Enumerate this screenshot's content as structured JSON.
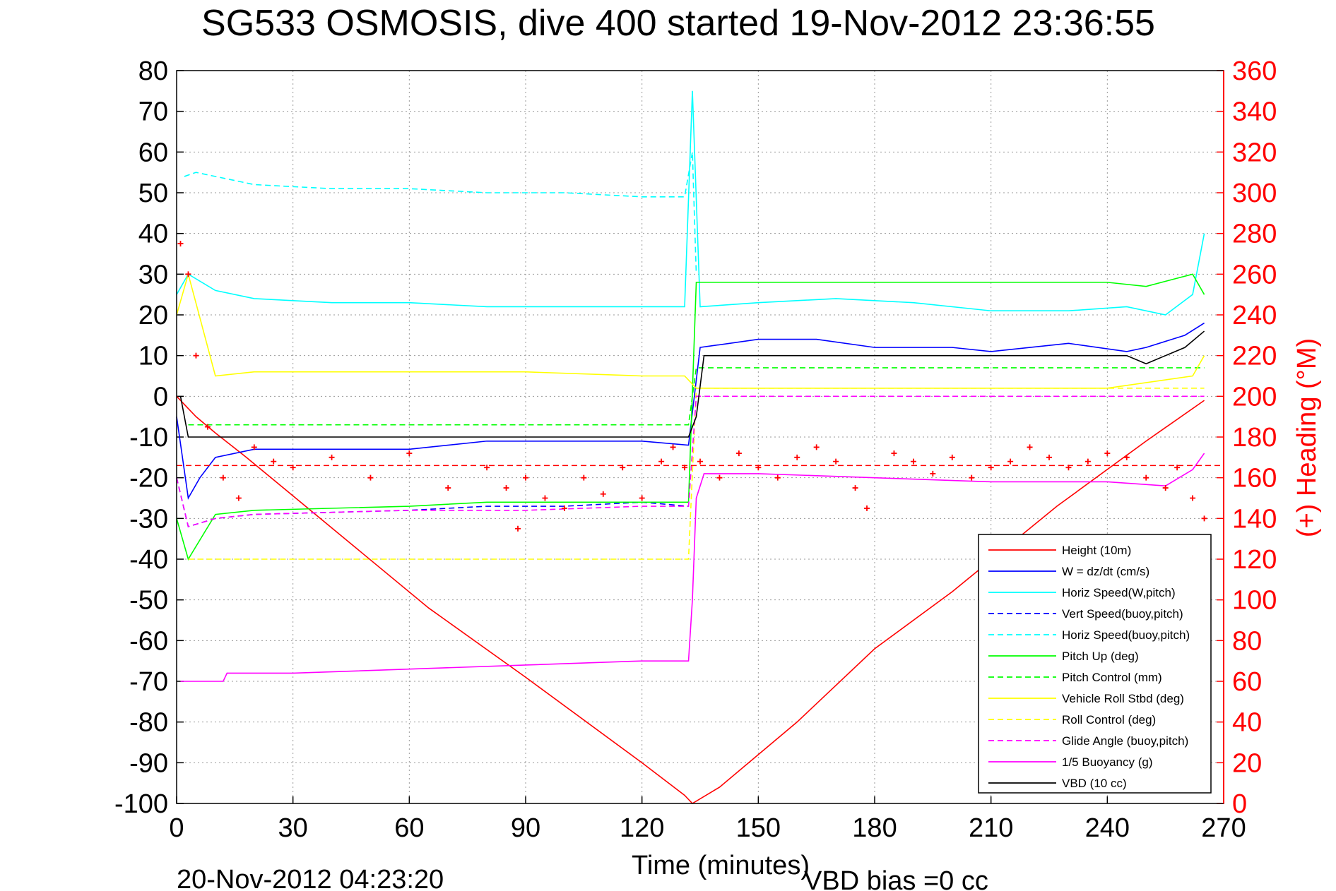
{
  "chart_data": {
    "type": "line",
    "title": "SG533 OSMOSIS, dive 400 started 19-Nov-2012 23:36:55",
    "xlabel": "Time (minutes)",
    "ylabel_right": "(+) Heading (°M)",
    "footer_left": "20-Nov-2012 04:23:20",
    "footer_right": "VBD bias =0 cc",
    "xlim": [
      0,
      270
    ],
    "ylim": [
      -100,
      80
    ],
    "ylim_right": [
      0,
      360
    ],
    "xticks": [
      0,
      30,
      60,
      90,
      120,
      150,
      180,
      210,
      240,
      270
    ],
    "yticks": [
      -100,
      -90,
      -80,
      -70,
      -60,
      -50,
      -40,
      -30,
      -20,
      -10,
      0,
      10,
      20,
      30,
      40,
      50,
      60,
      70,
      80
    ],
    "yticks_right": [
      0,
      20,
      40,
      60,
      80,
      100,
      120,
      140,
      160,
      180,
      200,
      220,
      240,
      260,
      280,
      300,
      320,
      340,
      360
    ],
    "grid": true,
    "legend_position": "bottom-right",
    "series": [
      {
        "name": "Height (10m)",
        "color": "#ff0000",
        "dash": "solid",
        "x": [
          0,
          5,
          10,
          18,
          65,
          90,
          120,
          131,
          133,
          140,
          160,
          180,
          200,
          227,
          250,
          265
        ],
        "y": [
          0,
          -5,
          -9,
          -15,
          -52,
          -69,
          -90,
          -98,
          -100,
          -96,
          -80,
          -62,
          -48,
          -27,
          -11,
          -1
        ]
      },
      {
        "name": "W = dz/dt (cm/s)",
        "color": "#0000ff",
        "dash": "solid",
        "x": [
          0,
          3,
          6,
          10,
          20,
          40,
          60,
          80,
          100,
          120,
          132,
          135,
          150,
          165,
          180,
          200,
          210,
          230,
          245,
          250,
          260,
          265
        ],
        "y": [
          -5,
          -25,
          -20,
          -15,
          -13,
          -13,
          -13,
          -11,
          -11,
          -11,
          -12,
          12,
          14,
          14,
          12,
          12,
          11,
          13,
          11,
          12,
          15,
          18
        ]
      },
      {
        "name": "Horiz Speed(W,pitch)",
        "color": "#00ffff",
        "dash": "solid",
        "x": [
          0,
          3,
          10,
          20,
          40,
          60,
          80,
          100,
          120,
          131,
          133,
          135,
          150,
          170,
          190,
          210,
          230,
          245,
          255,
          262,
          265
        ],
        "y": [
          25,
          30,
          26,
          24,
          23,
          23,
          22,
          22,
          22,
          22,
          75,
          22,
          23,
          24,
          23,
          21,
          21,
          22,
          20,
          25,
          40
        ]
      },
      {
        "name": "Vert Speed(buoy,pitch)",
        "color": "#0000ff",
        "dash": "dashed",
        "x": [
          0,
          3,
          10,
          20,
          60,
          80,
          100,
          120,
          132
        ],
        "y": [
          -20,
          -32,
          -30,
          -29,
          -28,
          -27,
          -27,
          -26,
          -27
        ]
      },
      {
        "name": "Horiz Speed(buoy,pitch)",
        "color": "#00ffff",
        "dash": "dashed",
        "x": [
          2,
          5,
          20,
          40,
          60,
          80,
          100,
          120,
          131,
          133,
          134
        ],
        "y": [
          54,
          55,
          52,
          51,
          51,
          50,
          50,
          49,
          49,
          60,
          30
        ]
      },
      {
        "name": "Pitch Up (deg)",
        "color": "#00ff00",
        "dash": "solid",
        "x": [
          0,
          3,
          10,
          20,
          60,
          80,
          100,
          120,
          132,
          134,
          150,
          180,
          210,
          240,
          250,
          262,
          265
        ],
        "y": [
          -30,
          -40,
          -29,
          -28,
          -27,
          -26,
          -26,
          -26,
          -26,
          28,
          28,
          28,
          28,
          28,
          27,
          30,
          25
        ]
      },
      {
        "name": "Pitch Control (mm)",
        "color": "#00ff00",
        "dash": "dashed",
        "x": [
          3,
          132,
          134,
          265
        ],
        "y": [
          -7,
          -7,
          7,
          7
        ]
      },
      {
        "name": "Vehicle Roll Stbd (deg)",
        "color": "#ffff00",
        "dash": "solid",
        "x": [
          0,
          3,
          10,
          20,
          60,
          90,
          120,
          131,
          134,
          150,
          180,
          210,
          240,
          262,
          265
        ],
        "y": [
          20,
          30,
          5,
          6,
          6,
          6,
          5,
          5,
          2,
          2,
          2,
          2,
          2,
          5,
          10
        ]
      },
      {
        "name": "Roll Control (deg)",
        "color": "#ffff00",
        "dash": "dashed",
        "x": [
          3,
          132,
          134,
          265
        ],
        "y": [
          -40,
          -40,
          2,
          2
        ]
      },
      {
        "name": "Glide Angle (buoy,pitch)",
        "color": "#ff00ff",
        "dash": "dashed",
        "x": [
          0,
          3,
          10,
          20,
          60,
          90,
          120,
          132,
          134,
          265
        ],
        "y": [
          -20,
          -32,
          -30,
          -29,
          -28,
          -28,
          -27,
          -27,
          0,
          0
        ]
      },
      {
        "name": "1/5 Buoyancy (g)",
        "color": "#ff00ff",
        "dash": "solid",
        "x": [
          1,
          5,
          12,
          13,
          30,
          60,
          90,
          120,
          132,
          133,
          134,
          136,
          150,
          180,
          210,
          240,
          255,
          262,
          265
        ],
        "y": [
          -70,
          -70,
          -70,
          -68,
          -68,
          -67,
          -66,
          -65,
          -65,
          -50,
          -25,
          -19,
          -19,
          -20,
          -21,
          -21,
          -22,
          -18,
          -14
        ]
      },
      {
        "name": "VBD (10 cc)",
        "color": "#000000",
        "dash": "solid",
        "x": [
          1,
          3,
          132,
          134,
          136,
          220,
          245,
          250,
          260,
          265
        ],
        "y": [
          0,
          -10,
          -10,
          -5,
          10,
          10,
          10,
          8,
          12,
          16
        ]
      }
    ],
    "heading_series": {
      "name": "Heading (°M)",
      "color": "#ff0000",
      "marker": "+",
      "axis": "right",
      "x": [
        1,
        3,
        5,
        8,
        12,
        16,
        20,
        25,
        30,
        40,
        50,
        60,
        70,
        80,
        85,
        88,
        90,
        95,
        100,
        105,
        110,
        115,
        120,
        125,
        128,
        131,
        135,
        140,
        145,
        150,
        155,
        160,
        165,
        170,
        175,
        178,
        185,
        190,
        195,
        200,
        205,
        210,
        215,
        220,
        225,
        230,
        235,
        240,
        245,
        250,
        255,
        258,
        262,
        265
      ],
      "y": [
        275,
        260,
        220,
        185,
        160,
        150,
        175,
        168,
        165,
        170,
        160,
        172,
        155,
        165,
        155,
        135,
        160,
        150,
        145,
        160,
        152,
        165,
        150,
        168,
        175,
        165,
        168,
        160,
        172,
        165,
        160,
        170,
        175,
        168,
        155,
        145,
        172,
        168,
        162,
        170,
        160,
        165,
        168,
        175,
        170,
        165,
        168,
        172,
        170,
        160,
        155,
        165,
        150,
        140
      ]
    },
    "heading_mean": {
      "name": "Heading mean",
      "color": "#ff0000",
      "dash": "dashed",
      "axis": "right",
      "y": 166
    }
  }
}
